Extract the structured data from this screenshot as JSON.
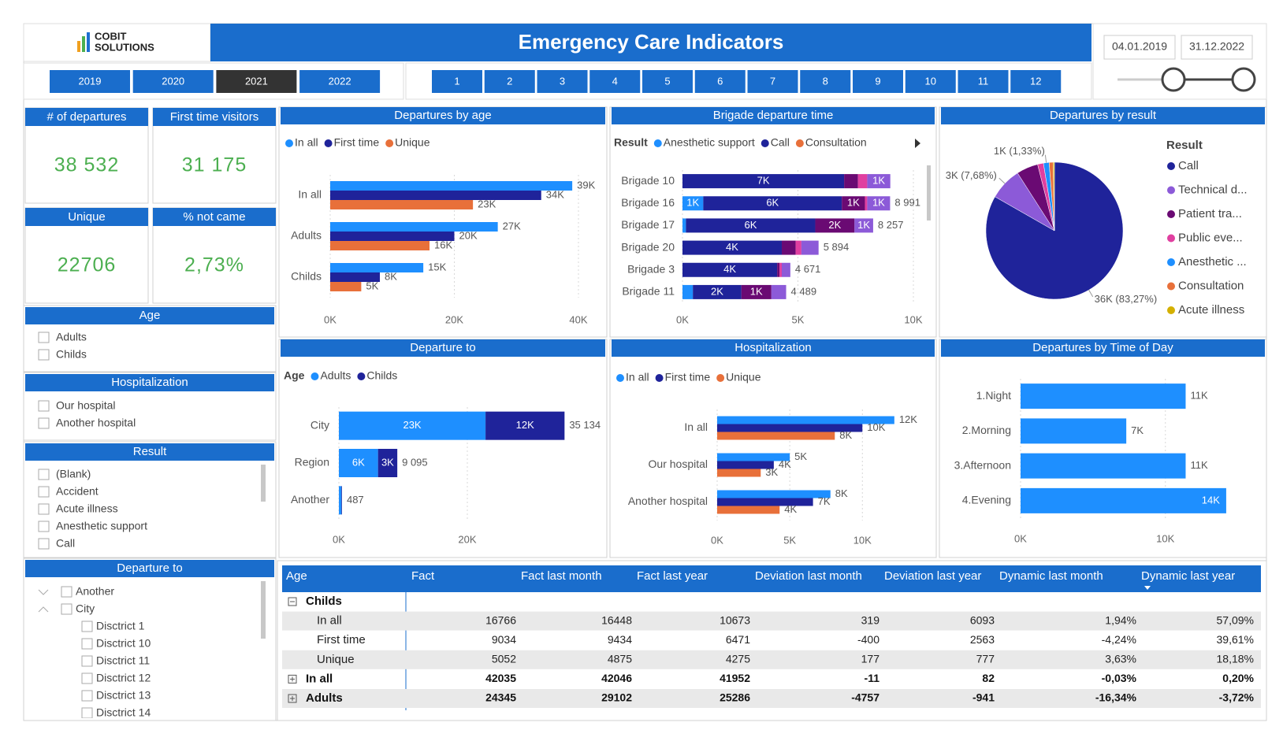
{
  "header": {
    "logo": [
      "COBIT",
      "SOLUTIONS"
    ],
    "title": "Emergency Care Indicators"
  },
  "years": {
    "items": [
      "2019",
      "2020",
      "2021",
      "2022"
    ],
    "selected": "2021"
  },
  "months": [
    1,
    2,
    3,
    4,
    5,
    6,
    7,
    8,
    9,
    10,
    11,
    12
  ],
  "date_range": [
    "04.01.2019",
    "31.12.2022"
  ],
  "kpis": [
    {
      "title": "# of departures",
      "value": "38 532"
    },
    {
      "title": "First time visitors",
      "value": "31 175"
    },
    {
      "title": "Unique",
      "value": "22706"
    },
    {
      "title": "% not came",
      "value": "2,73%"
    }
  ],
  "slicers": [
    {
      "title": "Age",
      "items": [
        "Adults",
        "Childs"
      ]
    },
    {
      "title": "Hospitalization",
      "items": [
        "Our hospital",
        "Another hospital"
      ]
    },
    {
      "title": "Result",
      "items": [
        "(Blank)",
        "Accident",
        "Acute illness",
        "Anesthetic support",
        "Call"
      ]
    },
    {
      "title": "Departure to",
      "items": [
        {
          "label": "Another"
        },
        {
          "label": "City",
          "children": [
            "Disctrict 1",
            "Disctrict 10",
            "Disctrict 11",
            "Disctrict 12",
            "Disctrict 13",
            "Disctrict 14"
          ]
        }
      ]
    }
  ],
  "chart_data": [
    {
      "type": "bar",
      "title": "Departures by age",
      "categories": [
        "In all",
        "Adults",
        "Childs"
      ],
      "series": [
        {
          "name": "In all",
          "color": "#1e8fff",
          "values": [
            39000,
            27000,
            15000
          ],
          "value_labels": [
            "39K",
            "27K",
            "15K"
          ]
        },
        {
          "name": "First time",
          "color": "#1f239a",
          "values": [
            34000,
            20000,
            8000
          ],
          "value_labels": [
            "34K",
            "20K",
            "8K"
          ]
        },
        {
          "name": "Unique",
          "color": "#e8703a",
          "values": [
            23000,
            16000,
            5000
          ],
          "value_labels": [
            "23K",
            "16K",
            "5K"
          ]
        }
      ],
      "xlim": [
        0,
        40000
      ],
      "xticks": [
        {
          "value": 0,
          "label": "0K"
        },
        {
          "value": 20000,
          "label": "20K"
        },
        {
          "value": 40000,
          "label": "40K"
        }
      ]
    },
    {
      "type": "stacked_bar",
      "title": "Brigade departure time",
      "legend_title": "Result",
      "categories": [
        "Brigade 10",
        "Brigade 16",
        "Brigade 17",
        "Brigade 20",
        "Brigade 3",
        "Brigade 11"
      ],
      "series": [
        {
          "name": "Anesthetic support",
          "color": "#1e8fff",
          "values": [
            0,
            900,
            150,
            0,
            0,
            450
          ],
          "value_labels": [
            null,
            "1K",
            null,
            null,
            null,
            null
          ]
        },
        {
          "name": "Call",
          "color": "#1f239a",
          "values": [
            7000,
            6000,
            5600,
            4300,
            4100,
            2100
          ],
          "value_labels": [
            "7K",
            "6K",
            "6K",
            "4K",
            "4K",
            "2K"
          ]
        },
        {
          "name": "Consultation",
          "color": "#e8703a",
          "values": [
            0,
            0,
            0,
            0,
            0,
            0
          ]
        },
        {
          "color": "#6a0a73",
          "values": [
            600,
            1000,
            1700,
            600,
            100,
            1300
          ],
          "value_labels": [
            null,
            "1K",
            "2K",
            null,
            null,
            "1K"
          ]
        },
        {
          "color": "#e03fa0",
          "values": [
            400,
            100,
            0,
            250,
            100,
            0
          ]
        },
        {
          "color": "#8c5ad8",
          "values": [
            1000,
            991,
            807,
            744,
            371,
            639
          ],
          "value_labels": [
            "1K",
            "1K",
            "1K",
            null,
            null,
            null
          ]
        }
      ],
      "totals": [
        null,
        8991,
        8257,
        5894,
        4671,
        4489
      ],
      "total_labels": [
        null,
        "8 991",
        "8 257",
        "5 894",
        "4 671",
        "4 489"
      ],
      "xlim": [
        0,
        10000
      ],
      "xticks": [
        {
          "value": 0,
          "label": "0K"
        },
        {
          "value": 5000,
          "label": "5K"
        },
        {
          "value": 10000,
          "label": "10K"
        }
      ]
    },
    {
      "type": "pie",
      "title": "Departures by result",
      "legend_title": "Result",
      "categories": [
        "Call",
        "Technical d...",
        "Patient tra...",
        "Public eve...",
        "Anesthetic ...",
        "Consultation",
        "Acute illness"
      ],
      "colors": [
        "#1f239a",
        "#8c5ad8",
        "#6a0a73",
        "#e03fa0",
        "#1e8fff",
        "#e8703a",
        "#d4b000"
      ],
      "values": [
        36000,
        3320,
        2200,
        600,
        575,
        400,
        138
      ],
      "value_labels": [
        "36K (83,27%)",
        "3K (7,68%)",
        null,
        null,
        "1K (1,33%)",
        null,
        null
      ]
    },
    {
      "type": "stacked_bar",
      "title": "Departure to",
      "legend_title": "Age",
      "categories": [
        "City",
        "Region",
        "Another"
      ],
      "series": [
        {
          "name": "Adults",
          "color": "#1e8fff",
          "values": [
            22834,
            6095,
            400
          ],
          "value_labels": [
            "23K",
            "6K",
            null
          ]
        },
        {
          "name": "Childs",
          "color": "#1f239a",
          "values": [
            12300,
            3000,
            87
          ],
          "value_labels": [
            "12K",
            "3K",
            null
          ]
        }
      ],
      "totals": [
        35134,
        9095,
        487
      ],
      "total_labels": [
        "35 134",
        "9 095",
        "487"
      ],
      "xlim": [
        0,
        40000
      ],
      "xticks": [
        {
          "value": 0,
          "label": "0K"
        },
        {
          "value": 20000,
          "label": "20K"
        }
      ]
    },
    {
      "type": "bar",
      "title": "Hospitalization",
      "categories": [
        "In all",
        "Our hospital",
        "Another hospital"
      ],
      "series": [
        {
          "name": "In all",
          "color": "#1e8fff",
          "values": [
            12200,
            5000,
            7800
          ],
          "value_labels": [
            "12K",
            "5K",
            "8K"
          ]
        },
        {
          "name": "First time",
          "color": "#1f239a",
          "values": [
            10000,
            3900,
            6600
          ],
          "value_labels": [
            "10K",
            "4K",
            "7K"
          ]
        },
        {
          "name": "Unique",
          "color": "#e8703a",
          "values": [
            8100,
            3000,
            4300
          ],
          "value_labels": [
            "8K",
            "3K",
            "4K"
          ]
        }
      ],
      "xlim": [
        0,
        14000
      ],
      "xticks": [
        {
          "value": 0,
          "label": "0K"
        },
        {
          "value": 5000,
          "label": "5K"
        },
        {
          "value": 10000,
          "label": "10K"
        }
      ]
    },
    {
      "type": "bar",
      "title": "Departures by Time of Day",
      "categories": [
        "1.Night",
        "2.Morning",
        "3.Afternoon",
        "4.Evening"
      ],
      "series": [
        {
          "color": "#1e8fff",
          "values": [
            11400,
            7300,
            11400,
            14200
          ],
          "value_labels": [
            "11K",
            "7K",
            "11K",
            "14K"
          ]
        }
      ],
      "xlim": [
        0,
        16000
      ],
      "xticks": [
        {
          "value": 0,
          "label": "0K"
        },
        {
          "value": 10000,
          "label": "10K"
        }
      ]
    }
  ],
  "table": {
    "columns": [
      "Age",
      "Fact",
      "Fact last month",
      "Fact last year",
      "Deviation last month",
      "Deviation last year",
      "Dynamic last month",
      "Dynamic last year"
    ],
    "rows": [
      {
        "label": "Childs",
        "children": [
          {
            "label": "In all",
            "cells": [
              16766,
              16448,
              10673,
              319,
              6093,
              "1,94%",
              "57,09%"
            ]
          },
          {
            "label": "First time",
            "cells": [
              9034,
              9434,
              6471,
              -400,
              2563,
              "-4,24%",
              "39,61%"
            ]
          },
          {
            "label": "Unique",
            "cells": [
              5052,
              4875,
              4275,
              177,
              777,
              "3,63%",
              "18,18%"
            ]
          }
        ]
      },
      {
        "label": "In all",
        "cells": [
          42035,
          42046,
          41952,
          -11,
          82,
          "-0,03%",
          "0,20%"
        ]
      },
      {
        "label": "Adults",
        "cells": [
          24345,
          29102,
          25286,
          -4757,
          -941,
          "-16,34%",
          "-3,72%"
        ]
      }
    ]
  }
}
